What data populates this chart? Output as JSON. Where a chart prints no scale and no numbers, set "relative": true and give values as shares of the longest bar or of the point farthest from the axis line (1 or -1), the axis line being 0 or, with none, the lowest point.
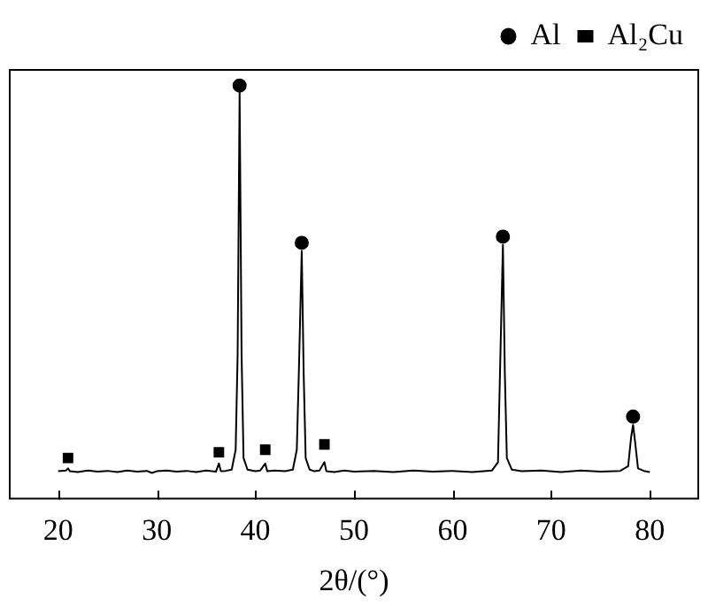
{
  "chart_data": {
    "type": "line",
    "xlabel": "2θ/(°)",
    "relative": true,
    "xlim": [
      15,
      85
    ],
    "xticks": [
      20,
      30,
      40,
      50,
      60,
      70,
      80
    ],
    "grid": false,
    "legend": "top right",
    "tick_labels": "x",
    "series": [
      {
        "color": "#000000",
        "marker": "none",
        "x": [
          20.0,
          20.8,
          21.0,
          21.2,
          22,
          23,
          24,
          25,
          26,
          27,
          28,
          29,
          29.5,
          30,
          31,
          32,
          33,
          34,
          35,
          36,
          36.3,
          36.5,
          37,
          37.6,
          38.0,
          38.2,
          38.4,
          38.6,
          38.8,
          39.2,
          40,
          40.5,
          41.0,
          41.2,
          42,
          43,
          43.8,
          44.2,
          44.4,
          44.7,
          44.9,
          45.1,
          45.5,
          46,
          46.5,
          47.0,
          47.2,
          48,
          49,
          50,
          52,
          54,
          56,
          58,
          60,
          62,
          64,
          64.6,
          64.8,
          65.1,
          65.3,
          65.5,
          66,
          67,
          69,
          71,
          73,
          75,
          77,
          77.8,
          78.1,
          78.3,
          78.5,
          78.8,
          79.5,
          80
        ],
        "values": [
          0.068,
          0.07,
          0.075,
          0.068,
          0.066,
          0.07,
          0.067,
          0.069,
          0.066,
          0.07,
          0.067,
          0.069,
          0.064,
          0.068,
          0.07,
          0.067,
          0.069,
          0.066,
          0.07,
          0.067,
          0.087,
          0.068,
          0.069,
          0.072,
          0.12,
          0.35,
          0.985,
          0.35,
          0.1,
          0.072,
          0.068,
          0.07,
          0.087,
          0.068,
          0.07,
          0.068,
          0.072,
          0.12,
          0.3,
          0.6,
          0.3,
          0.1,
          0.072,
          0.068,
          0.07,
          0.09,
          0.068,
          0.066,
          0.07,
          0.067,
          0.069,
          0.066,
          0.07,
          0.067,
          0.069,
          0.066,
          0.07,
          0.09,
          0.3,
          0.615,
          0.3,
          0.1,
          0.072,
          0.068,
          0.07,
          0.066,
          0.07,
          0.067,
          0.069,
          0.08,
          0.15,
          0.18,
          0.14,
          0.075,
          0.068,
          0.066
        ]
      },
      {
        "type": "scatter",
        "name": "Al",
        "color": "#000000",
        "marker": "circle",
        "x": [
          38.4,
          44.7,
          65.1,
          78.3
        ],
        "values": [
          1,
          0.62,
          0.635,
          0.2
        ]
      },
      {
        "type": "scatter",
        "name": "Al₂Cu",
        "color": "#000000",
        "marker": "square",
        "x": [
          21.0,
          36.3,
          41.0,
          47.0
        ],
        "values": [
          0.1,
          0.114,
          0.12,
          0.133
        ]
      }
    ]
  }
}
